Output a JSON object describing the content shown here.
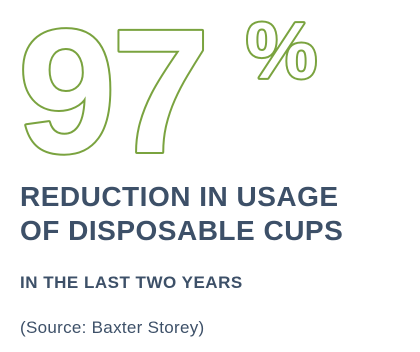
{
  "stat": {
    "number": "97",
    "unit": "%"
  },
  "headline": {
    "line1": "REDUCTION IN USAGE",
    "line2": "OF DISPOSABLE CUPS"
  },
  "subheadline": "IN THE LAST TWO YEARS",
  "source": "(Source: Baxter Storey)",
  "colors": {
    "outline_green": "#7aa33f",
    "text_navy": "#3d5068",
    "background": "#ffffff"
  }
}
